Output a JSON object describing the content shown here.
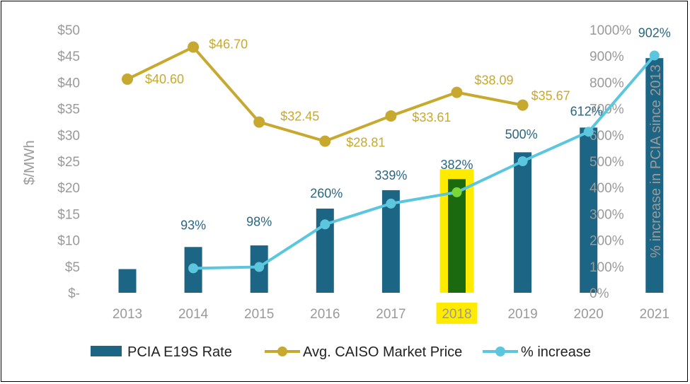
{
  "colors": {
    "bar": "#1d6584",
    "bar_highlight": "#1b6a10",
    "price_line": "#c7a92f",
    "pct_line": "#5bc6dd",
    "highlight": "#ffeb00",
    "highlight_point": "#7ad836",
    "axis_text": "#9a9a9a",
    "pct_label_text": "#2a6684",
    "price_label_text": "#c7a92f"
  },
  "chart_data": {
    "type": "bar",
    "categories": [
      "2013",
      "2014",
      "2015",
      "2016",
      "2017",
      "2018",
      "2019",
      "2020",
      "2021"
    ],
    "highlight_category": "2018",
    "ylabel_left": "$/MWh",
    "ylabel_right": "% increase in PCIA since 2013",
    "left_axis": {
      "min": 0,
      "max": 50,
      "step": 5,
      "ticks": [
        "$-",
        "$5",
        "$10",
        "$15",
        "$20",
        "$25",
        "$30",
        "$35",
        "$40",
        "$45",
        "$50"
      ]
    },
    "right_axis": {
      "min": 0,
      "max": 1000,
      "step": 100,
      "ticks": [
        "0%",
        "100%",
        "200%",
        "300%",
        "400%",
        "500%",
        "600%",
        "700%",
        "800%",
        "900%",
        "1000%"
      ]
    },
    "series": [
      {
        "name": "PCIA E19S Rate",
        "kind": "bar",
        "axis": "left",
        "values": [
          4.5,
          8.7,
          9.0,
          16.0,
          19.5,
          21.6,
          26.7,
          31.4,
          44.6
        ]
      },
      {
        "name": "Avg. CAISO Market Price",
        "kind": "line",
        "axis": "left",
        "values": [
          40.6,
          46.7,
          32.45,
          28.81,
          33.61,
          38.09,
          35.67,
          null,
          null
        ],
        "labels": [
          "$40.60",
          "$46.70",
          "$32.45",
          "$28.81",
          "$33.61",
          "$38.09",
          "$35.67",
          "",
          ""
        ]
      },
      {
        "name": "% increase",
        "kind": "line",
        "axis": "right",
        "values": [
          null,
          93,
          98,
          260,
          339,
          382,
          500,
          612,
          902
        ],
        "labels": [
          "",
          "93%",
          "98%",
          "260%",
          "339%",
          "382%",
          "500%",
          "612%",
          "902%"
        ]
      }
    ],
    "legend": {
      "position": "bottom",
      "items": [
        {
          "label": "PCIA E19S Rate",
          "kind": "bar"
        },
        {
          "label": "Avg. CAISO Market Price",
          "kind": "line"
        },
        {
          "label": "% increase",
          "kind": "line"
        }
      ]
    }
  }
}
